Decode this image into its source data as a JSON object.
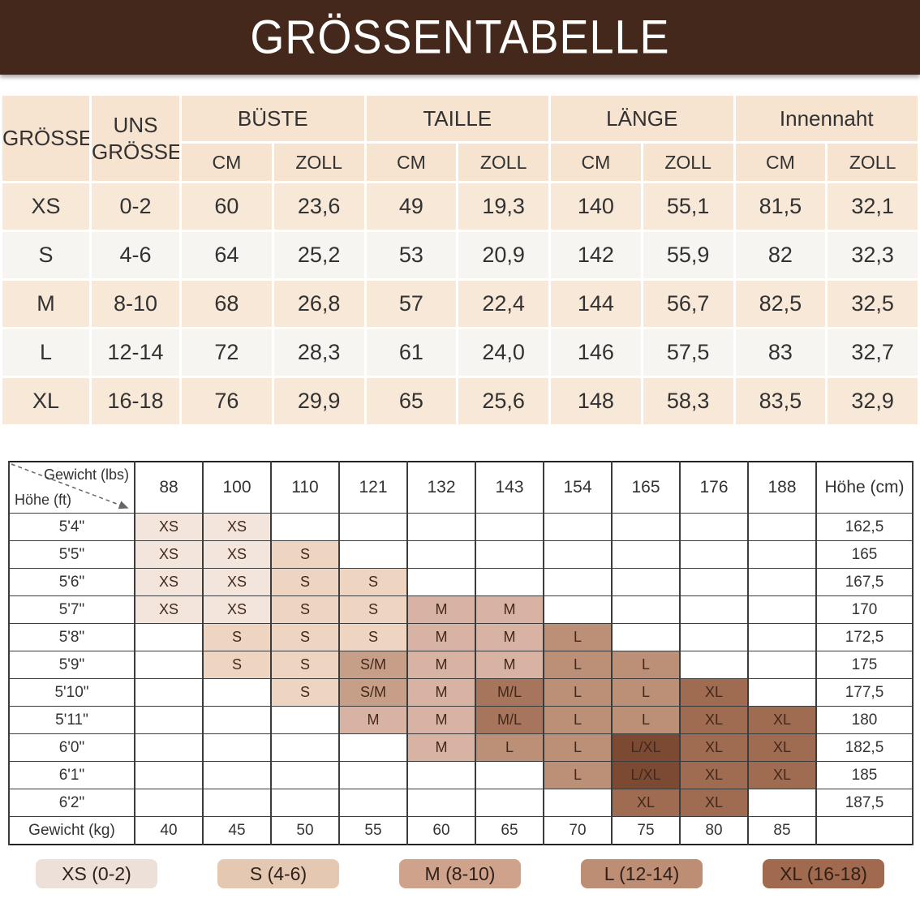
{
  "title": "GRÖSSENTABELLE",
  "size_table": {
    "corner_header": "GRÖSSE",
    "us_header": "UNS GRÖSSE",
    "groups": [
      "BÜSTE",
      "TAILLE",
      "LÄNGE",
      "Innennaht"
    ],
    "units": [
      "CM",
      "ZOLL"
    ],
    "rows": [
      {
        "size": "XS",
        "us": "0-2",
        "values": [
          "60",
          "23,6",
          "49",
          "19,3",
          "140",
          "55,1",
          "81,5",
          "32,1"
        ]
      },
      {
        "size": "S",
        "us": "4-6",
        "values": [
          "64",
          "25,2",
          "53",
          "20,9",
          "142",
          "55,9",
          "82",
          "32,3"
        ]
      },
      {
        "size": "M",
        "us": "8-10",
        "values": [
          "68",
          "26,8",
          "57",
          "22,4",
          "144",
          "56,7",
          "82,5",
          "32,5"
        ]
      },
      {
        "size": "L",
        "us": "12-14",
        "values": [
          "72",
          "28,3",
          "61",
          "24,0",
          "146",
          "57,5",
          "83",
          "32,7"
        ]
      },
      {
        "size": "XL",
        "us": "16-18",
        "values": [
          "76",
          "29,9",
          "65",
          "25,6",
          "148",
          "58,3",
          "83,5",
          "32,9"
        ]
      }
    ]
  },
  "matrix": {
    "corner_top_label": "Gewicht (lbs)",
    "corner_bottom_label": "Höhe (ft)",
    "right_header": "Höhe (cm)",
    "col_headers_lbs": [
      "88",
      "100",
      "110",
      "121",
      "132",
      "143",
      "154",
      "165",
      "176",
      "188"
    ],
    "rows": [
      {
        "height_ft": "5'4\"",
        "cells": [
          "XS",
          "XS",
          "",
          "",
          "",
          "",
          "",
          "",
          "",
          ""
        ],
        "height_cm": "162,5"
      },
      {
        "height_ft": "5'5\"",
        "cells": [
          "XS",
          "XS",
          "S",
          "",
          "",
          "",
          "",
          "",
          "",
          ""
        ],
        "height_cm": "165"
      },
      {
        "height_ft": "5'6\"",
        "cells": [
          "XS",
          "XS",
          "S",
          "S",
          "",
          "",
          "",
          "",
          "",
          ""
        ],
        "height_cm": "167,5"
      },
      {
        "height_ft": "5'7\"",
        "cells": [
          "XS",
          "XS",
          "S",
          "S",
          "M",
          "M",
          "",
          "",
          "",
          ""
        ],
        "height_cm": "170"
      },
      {
        "height_ft": "5'8\"",
        "cells": [
          "",
          "S",
          "S",
          "S",
          "M",
          "M",
          "L",
          "",
          "",
          ""
        ],
        "height_cm": "172,5"
      },
      {
        "height_ft": "5'9\"",
        "cells": [
          "",
          "S",
          "S",
          "S/M",
          "M",
          "M",
          "L",
          "L",
          "",
          ""
        ],
        "height_cm": "175"
      },
      {
        "height_ft": "5'10\"",
        "cells": [
          "",
          "",
          "S",
          "S/M",
          "M",
          "M/L",
          "L",
          "L",
          "XL",
          ""
        ],
        "height_cm": "177,5"
      },
      {
        "height_ft": "5'11\"",
        "cells": [
          "",
          "",
          "",
          "M",
          "M",
          "M/L",
          "L",
          "L",
          "XL",
          "XL"
        ],
        "height_cm": "180"
      },
      {
        "height_ft": "6'0\"",
        "cells": [
          "",
          "",
          "",
          "",
          "M",
          "L",
          "L",
          "L/XL",
          "XL",
          "XL"
        ],
        "height_cm": "182,5"
      },
      {
        "height_ft": "6'1\"",
        "cells": [
          "",
          "",
          "",
          "",
          "",
          "",
          "L",
          "L/XL",
          "XL",
          "XL"
        ],
        "height_cm": "185"
      },
      {
        "height_ft": "6'2\"",
        "cells": [
          "",
          "",
          "",
          "",
          "",
          "",
          "",
          "XL",
          "XL",
          ""
        ],
        "height_cm": "187,5"
      }
    ],
    "footer_label": "Gewicht (kg)",
    "footer_values": [
      "40",
      "45",
      "50",
      "55",
      "60",
      "65",
      "70",
      "75",
      "80",
      "85"
    ]
  },
  "size_colors": {
    "XS": "#f3e5db",
    "S": "#edd5c1",
    "S/M": "#c79e87",
    "M": "#d8b2a2",
    "M/L": "#a7745c",
    "L": "#bc8f77",
    "L/XL": "#7c4a33",
    "XL": "#9f6b51"
  },
  "legend": [
    {
      "label": "XS (0-2)",
      "color": "#ece0d8"
    },
    {
      "label": "S (4-6)",
      "color": "#e4c8b2"
    },
    {
      "label": "M (8-10)",
      "color": "#cfa28b"
    },
    {
      "label": "L (12-14)",
      "color": "#bd8d74"
    },
    {
      "label": "XL (16-18)",
      "color": "#a16a4e"
    }
  ],
  "theme": {
    "banner_bg": "#44281b",
    "banner_text": "#ffffff",
    "header_bg": "#f6e3d0",
    "row_peach": "#f8e8d7",
    "row_light": "#f7f5f2"
  }
}
